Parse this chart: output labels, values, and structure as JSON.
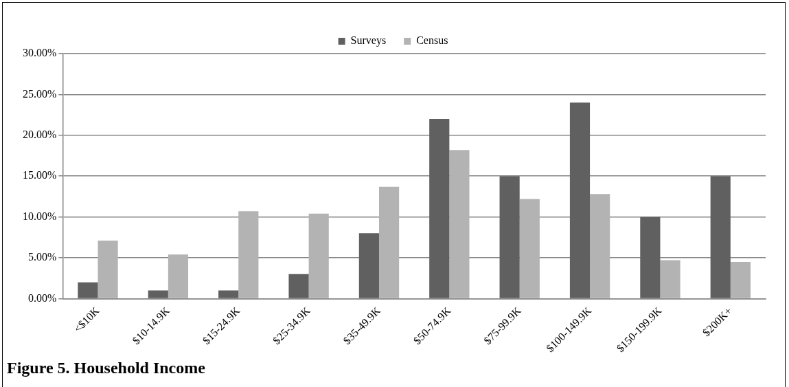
{
  "chart_data": {
    "type": "bar",
    "title": "Figure 5. Household Income",
    "categories": [
      "<$10K",
      "$10-14.9K",
      "$15-24.9K",
      "$25-34.9K",
      "$35-49.9K",
      "$50-74.9K",
      "$75-99.9K",
      "$100-149.9K",
      "$150-199.9K",
      "$200K+"
    ],
    "series": [
      {
        "name": "Surveys",
        "color": "#606060",
        "values": [
          2,
          1,
          1,
          3,
          8,
          22,
          15,
          24,
          10,
          15
        ]
      },
      {
        "name": "Census",
        "color": "#b3b3b3",
        "values": [
          7.1,
          5.4,
          10.7,
          10.4,
          13.7,
          18.2,
          12.2,
          12.8,
          4.7,
          4.5
        ]
      }
    ],
    "ylim": [
      0,
      30
    ],
    "yticks": [
      {
        "value": 0,
        "label": "0.00%"
      },
      {
        "value": 5,
        "label": "5.00%"
      },
      {
        "value": 10,
        "label": "10.00%"
      },
      {
        "value": 15,
        "label": "15.00%"
      },
      {
        "value": 20,
        "label": "20.00%"
      },
      {
        "value": 25,
        "label": "25.00%"
      },
      {
        "value": 30,
        "label": "30.00%"
      }
    ],
    "grid": "y",
    "legend": "top"
  }
}
